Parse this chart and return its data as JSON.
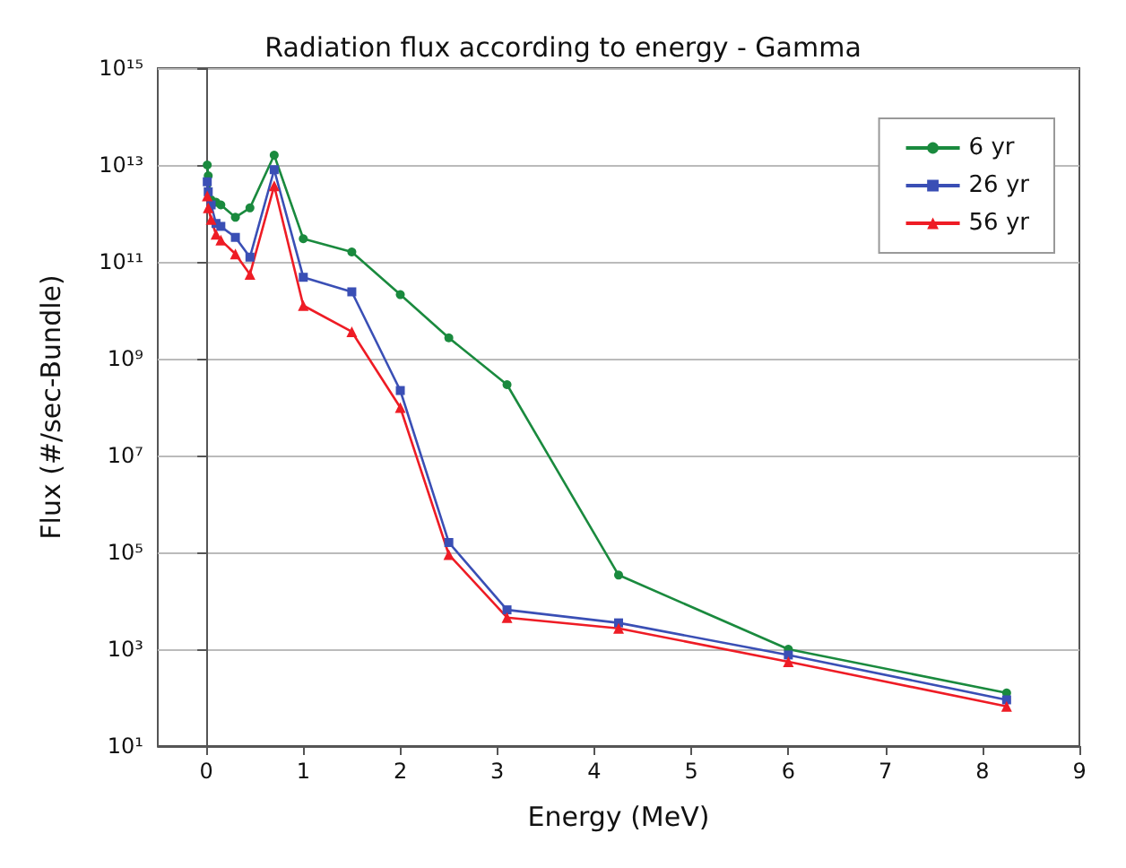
{
  "chart_data": {
    "type": "line",
    "title": "Radiation flux according to energy - Gamma",
    "xlabel": "Energy (MeV)",
    "ylabel": "Flux (#/sec-Bundle)",
    "x": [
      0.01,
      0.02,
      0.05,
      0.1,
      0.15,
      0.3,
      0.45,
      0.7,
      1.0,
      1.5,
      2.0,
      2.5,
      3.1,
      4.25,
      6.0,
      8.25
    ],
    "series": [
      {
        "name": "6 yr",
        "color": "#1a8a3e",
        "marker": "circle",
        "values": [
          10000000000000.0,
          6000000000000.0,
          1900000000000.0,
          1700000000000.0,
          1500000000000.0,
          830000000000.0,
          1300000000000.0,
          16000000000000.0,
          300000000000.0,
          160000000000.0,
          21000000000.0,
          2700000000.0,
          290000000.0,
          34000.0,
          1000,
          125
        ]
      },
      {
        "name": "26 yr",
        "color": "#3a4fb5",
        "marker": "square",
        "values": [
          4500000000000.0,
          2800000000000.0,
          1500000000000.0,
          620000000000.0,
          540000000000.0,
          320000000000.0,
          125000000000.0,
          8000000000000.0,
          48000000000.0,
          24000000000.0,
          220000000.0,
          160000.0,
          6500.0,
          3500.0,
          760,
          90
        ]
      },
      {
        "name": "56 yr",
        "color": "#ee1c25",
        "marker": "triangle",
        "values": [
          2300000000000.0,
          1300000000000.0,
          750000000000.0,
          370000000000.0,
          280000000000.0,
          145000000000.0,
          55000000000.0,
          3700000000000.0,
          12500000000.0,
          3600000000.0,
          98000000.0,
          90000.0,
          4500.0,
          2700.0,
          550,
          66
        ]
      }
    ],
    "xlim": [
      -0.5,
      9
    ],
    "xticks": [
      0,
      1,
      2,
      3,
      4,
      5,
      6,
      7,
      8,
      9
    ],
    "log": "y",
    "ylim": [
      10,
      1000000000000000.0
    ],
    "yticks": [
      {
        "value": 10,
        "label": "10¹"
      },
      {
        "value": 1000,
        "label": "10³"
      },
      {
        "value": 100000.0,
        "label": "10⁵"
      },
      {
        "value": 10000000.0,
        "label": "10⁷"
      },
      {
        "value": 1000000000.0,
        "label": "10⁹"
      },
      {
        "value": 100000000000.0,
        "label": "10¹¹"
      },
      {
        "value": 10000000000000.0,
        "label": "10¹³"
      },
      {
        "value": 1000000000000000.0,
        "label": "10¹⁵"
      }
    ],
    "grid": "y",
    "legend": "top right",
    "line_style": "solid"
  }
}
